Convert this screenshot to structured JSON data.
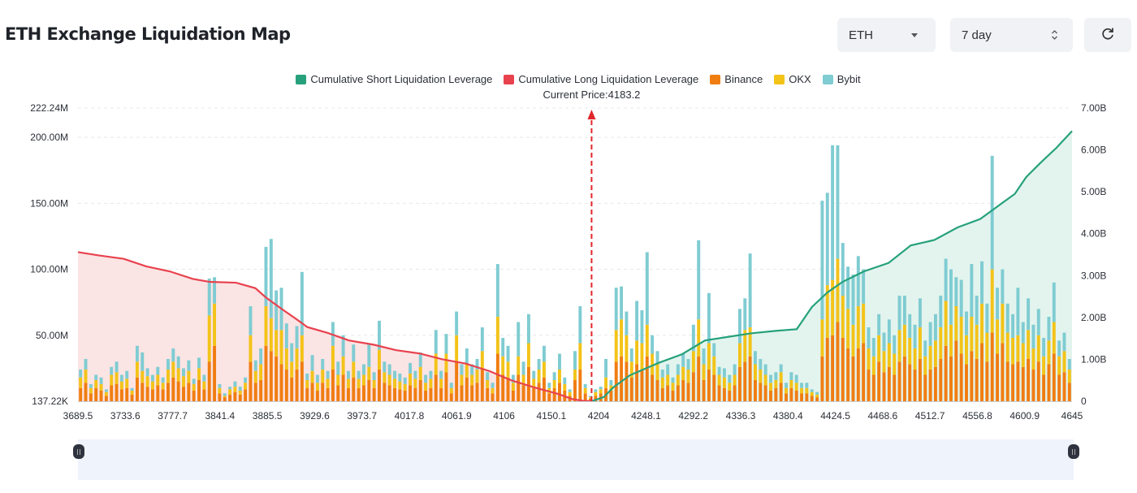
{
  "header": {
    "title": "ETH Exchange Liquidation Map"
  },
  "controls": {
    "coin_value": "ETH",
    "range_value": "7 day",
    "refresh_icon": "refresh-icon",
    "dropdown_icon": "chevron-down-icon",
    "stepper_icon": "updown-icon"
  },
  "colors": {
    "short_line": "#26a17b",
    "short_fill": "#e3f4ee",
    "long_line": "#e8424e",
    "long_fill": "#fbe4e4",
    "binance": "#f07d12",
    "okx": "#f3c318",
    "bybit": "#7fccd2",
    "marker": "#e0262b"
  },
  "chart_data": {
    "type": "bar",
    "title": "ETH Exchange Liquidation Map",
    "current_price_label": "Current Price:4183.2",
    "current_price": 4183.2,
    "legend": [
      {
        "name": "Cumulative Short Liquidation Leverage",
        "color": "#26a17b"
      },
      {
        "name": "Cumulative Long Liquidation Leverage",
        "color": "#e8424e"
      },
      {
        "name": "Binance",
        "color": "#f07d12"
      },
      {
        "name": "OKX",
        "color": "#f3c318"
      },
      {
        "name": "Bybit",
        "color": "#7fccd2"
      }
    ],
    "legend_position": "top-center",
    "x_tick_labels": [
      "3689.5",
      "3733.6",
      "3777.7",
      "3841.4",
      "3885.5",
      "3929.6",
      "3973.7",
      "4017.8",
      "4061.9",
      "4106",
      "4150.1",
      "4204",
      "4248.1",
      "4292.2",
      "4336.3",
      "4380.4",
      "4424.5",
      "4468.6",
      "4512.7",
      "4556.8",
      "4600.9",
      "4645"
    ],
    "x_range": [
      3689.5,
      4645
    ],
    "y_left_ticks": [
      "137.22K",
      "50.00M",
      "100.00M",
      "150.00M",
      "200.00M",
      "222.24M"
    ],
    "y_left_range": [
      0.13722,
      222.24
    ],
    "y_left_unit": "M",
    "y_right_ticks": [
      "0",
      "1.00B",
      "2.00B",
      "3.00B",
      "4.00B",
      "5.00B",
      "6.00B",
      "7.00B"
    ],
    "y_right_range": [
      0,
      7
    ],
    "y_right_unit": "B",
    "grid": true,
    "long_cumulative": {
      "name": "Cumulative Long Liquidation Leverage",
      "x": [
        3689.5,
        3710,
        3733.6,
        3755,
        3777.7,
        3800,
        3816,
        3841.4,
        3860,
        3870,
        3885.5,
        3900,
        3910,
        3929.6,
        3950,
        3973.7,
        3995,
        4017.8,
        4040,
        4061.9,
        4085,
        4106,
        4128,
        4150.1,
        4165,
        4175,
        4183.2
      ],
      "y": [
        3.56,
        3.48,
        3.4,
        3.22,
        3.1,
        2.92,
        2.85,
        2.83,
        2.7,
        2.48,
        2.2,
        1.95,
        1.77,
        1.63,
        1.45,
        1.35,
        1.22,
        1.14,
        1.0,
        0.9,
        0.72,
        0.5,
        0.33,
        0.18,
        0.05,
        0.01,
        0.0
      ]
    },
    "short_cumulative": {
      "name": "Cumulative Short Liquidation Leverage",
      "x": [
        4183.2,
        4195,
        4204,
        4220,
        4235,
        4248.1,
        4270,
        4292.2,
        4310,
        4336.3,
        4360,
        4380.4,
        4395,
        4410,
        4424.5,
        4445,
        4468.6,
        4490,
        4512.7,
        4535,
        4556.8,
        4575,
        4590,
        4600.9,
        4615,
        4630,
        4645
      ],
      "y": [
        0.0,
        0.1,
        0.33,
        0.62,
        0.78,
        0.92,
        1.12,
        1.45,
        1.52,
        1.62,
        1.68,
        1.72,
        2.25,
        2.6,
        2.85,
        3.1,
        3.3,
        3.72,
        3.85,
        4.15,
        4.35,
        4.68,
        4.95,
        5.35,
        5.7,
        6.05,
        6.45
      ]
    },
    "bars_note": "stacked liquidation volume per price level (M); order bottom→top: Binance, OKX, Bybit",
    "bars": [
      [
        10,
        8,
        6
      ],
      [
        14,
        10,
        8
      ],
      [
        6,
        4,
        3
      ],
      [
        10,
        6,
        4
      ],
      [
        8,
        5,
        5
      ],
      [
        4,
        3,
        2
      ],
      [
        12,
        8,
        6
      ],
      [
        13,
        9,
        8
      ],
      [
        9,
        6,
        5
      ],
      [
        10,
        7,
        6
      ],
      [
        5,
        3,
        2
      ],
      [
        18,
        12,
        12
      ],
      [
        14,
        9,
        14
      ],
      [
        11,
        8,
        6
      ],
      [
        9,
        6,
        5
      ],
      [
        12,
        8,
        6
      ],
      [
        9,
        5,
        4
      ],
      [
        14,
        10,
        8
      ],
      [
        18,
        12,
        10
      ],
      [
        15,
        10,
        9
      ],
      [
        11,
        8,
        6
      ],
      [
        14,
        9,
        8
      ],
      [
        8,
        5,
        4
      ],
      [
        16,
        9,
        8
      ],
      [
        9,
        6,
        5
      ],
      [
        30,
        35,
        28
      ],
      [
        42,
        32,
        20
      ],
      [
        6,
        4,
        3
      ],
      [
        3,
        1,
        2
      ],
      [
        5,
        4,
        2
      ],
      [
        7,
        4,
        4
      ],
      [
        5,
        3,
        3
      ],
      [
        9,
        5,
        4
      ],
      [
        30,
        20,
        22
      ],
      [
        14,
        9,
        8
      ],
      [
        16,
        12,
        12
      ],
      [
        42,
        30,
        45
      ],
      [
        38,
        25,
        60
      ],
      [
        34,
        20,
        30
      ],
      [
        28,
        26,
        32
      ],
      [
        24,
        16,
        19
      ],
      [
        18,
        12,
        14
      ],
      [
        24,
        16,
        17
      ],
      [
        30,
        20,
        48
      ],
      [
        10,
        6,
        5
      ],
      [
        14,
        9,
        12
      ],
      [
        8,
        6,
        6
      ],
      [
        14,
        10,
        8
      ],
      [
        10,
        7,
        6
      ],
      [
        24,
        18,
        18
      ],
      [
        12,
        8,
        10
      ],
      [
        20,
        14,
        16
      ],
      [
        10,
        7,
        6
      ],
      [
        18,
        12,
        13
      ],
      [
        10,
        7,
        6
      ],
      [
        12,
        8,
        8
      ],
      [
        16,
        10,
        18
      ],
      [
        10,
        6,
        6
      ],
      [
        24,
        15,
        22
      ],
      [
        14,
        8,
        8
      ],
      [
        12,
        8,
        8
      ],
      [
        10,
        7,
        6
      ],
      [
        9,
        6,
        6
      ],
      [
        8,
        5,
        5
      ],
      [
        12,
        9,
        8
      ],
      [
        10,
        7,
        6
      ],
      [
        16,
        10,
        11
      ],
      [
        8,
        6,
        6
      ],
      [
        10,
        7,
        6
      ],
      [
        20,
        16,
        18
      ],
      [
        10,
        7,
        6
      ],
      [
        22,
        14,
        15
      ],
      [
        6,
        4,
        4
      ],
      [
        30,
        20,
        18
      ],
      [
        12,
        8,
        8
      ],
      [
        18,
        10,
        12
      ],
      [
        12,
        8,
        8
      ],
      [
        14,
        10,
        8
      ],
      [
        24,
        14,
        18
      ],
      [
        10,
        6,
        6
      ],
      [
        6,
        4,
        4
      ],
      [
        36,
        28,
        40
      ],
      [
        20,
        14,
        14
      ],
      [
        18,
        12,
        12
      ],
      [
        8,
        6,
        6
      ],
      [
        20,
        14,
        26
      ],
      [
        12,
        8,
        10
      ],
      [
        26,
        18,
        22
      ],
      [
        10,
        7,
        6
      ],
      [
        14,
        10,
        8
      ],
      [
        18,
        12,
        12
      ],
      [
        6,
        4,
        4
      ],
      [
        10,
        6,
        6
      ],
      [
        14,
        10,
        12
      ],
      [
        8,
        5,
        5
      ],
      [
        4,
        3,
        2
      ],
      [
        16,
        8,
        14
      ],
      [
        24,
        20,
        28
      ],
      [
        6,
        4,
        3
      ],
      [
        2,
        1,
        1
      ],
      [
        4,
        3,
        2
      ],
      [
        6,
        3,
        2
      ],
      [
        10,
        8,
        14
      ],
      [
        8,
        4,
        4
      ],
      [
        30,
        24,
        32
      ],
      [
        34,
        28,
        25
      ],
      [
        30,
        20,
        18
      ],
      [
        18,
        12,
        10
      ],
      [
        28,
        18,
        30
      ],
      [
        24,
        20,
        25
      ],
      [
        34,
        24,
        55
      ],
      [
        20,
        16,
        14
      ],
      [
        16,
        12,
        10
      ],
      [
        10,
        8,
        6
      ],
      [
        12,
        8,
        8
      ],
      [
        8,
        6,
        4
      ],
      [
        12,
        8,
        8
      ],
      [
        16,
        10,
        10
      ],
      [
        14,
        10,
        8
      ],
      [
        22,
        16,
        20
      ],
      [
        34,
        28,
        60
      ],
      [
        16,
        12,
        12
      ],
      [
        24,
        20,
        38
      ],
      [
        20,
        14,
        10
      ],
      [
        12,
        8,
        6
      ],
      [
        10,
        8,
        7
      ],
      [
        8,
        6,
        6
      ],
      [
        12,
        8,
        8
      ],
      [
        26,
        18,
        26
      ],
      [
        30,
        24,
        24
      ],
      [
        34,
        22,
        56
      ],
      [
        16,
        12,
        10
      ],
      [
        14,
        10,
        8
      ],
      [
        12,
        8,
        8
      ],
      [
        8,
        6,
        6
      ],
      [
        10,
        6,
        6
      ],
      [
        14,
        8,
        6
      ],
      [
        6,
        4,
        4
      ],
      [
        10,
        6,
        6
      ],
      [
        8,
        6,
        6
      ],
      [
        6,
        4,
        4
      ],
      [
        6,
        4,
        4
      ],
      [
        4,
        3,
        2
      ],
      [
        3,
        2,
        2
      ],
      [
        34,
        28,
        90
      ],
      [
        48,
        40,
        70
      ],
      [
        50,
        42,
        102
      ],
      [
        60,
        48,
        86
      ],
      [
        48,
        32,
        40
      ],
      [
        40,
        30,
        32
      ],
      [
        34,
        24,
        38
      ],
      [
        40,
        32,
        38
      ],
      [
        44,
        30,
        26
      ],
      [
        24,
        16,
        16
      ],
      [
        20,
        14,
        14
      ],
      [
        30,
        20,
        16
      ],
      [
        22,
        16,
        14
      ],
      [
        26,
        18,
        18
      ],
      [
        20,
        16,
        14
      ],
      [
        30,
        24,
        26
      ],
      [
        34,
        24,
        22
      ],
      [
        28,
        20,
        18
      ],
      [
        24,
        16,
        18
      ],
      [
        32,
        24,
        22
      ],
      [
        20,
        14,
        12
      ],
      [
        24,
        18,
        18
      ],
      [
        26,
        20,
        20
      ],
      [
        32,
        24,
        24
      ],
      [
        42,
        34,
        32
      ],
      [
        34,
        24,
        42
      ],
      [
        46,
        26,
        22
      ],
      [
        36,
        28,
        28
      ],
      [
        28,
        22,
        18
      ],
      [
        38,
        26,
        40
      ],
      [
        32,
        26,
        22
      ],
      [
        44,
        30,
        32
      ],
      [
        30,
        22,
        22
      ],
      [
        52,
        48,
        86
      ],
      [
        36,
        26,
        24
      ],
      [
        44,
        30,
        26
      ],
      [
        30,
        22,
        22
      ],
      [
        28,
        20,
        18
      ],
      [
        30,
        20,
        36
      ],
      [
        26,
        18,
        16
      ],
      [
        32,
        22,
        24
      ],
      [
        24,
        16,
        18
      ],
      [
        30,
        20,
        20
      ],
      [
        20,
        14,
        14
      ],
      [
        28,
        18,
        18
      ],
      [
        36,
        24,
        30
      ],
      [
        20,
        14,
        12
      ],
      [
        22,
        16,
        14
      ],
      [
        14,
        10,
        8
      ]
    ]
  },
  "navigator": {
    "handle_icon": "drag-handle-icon"
  }
}
